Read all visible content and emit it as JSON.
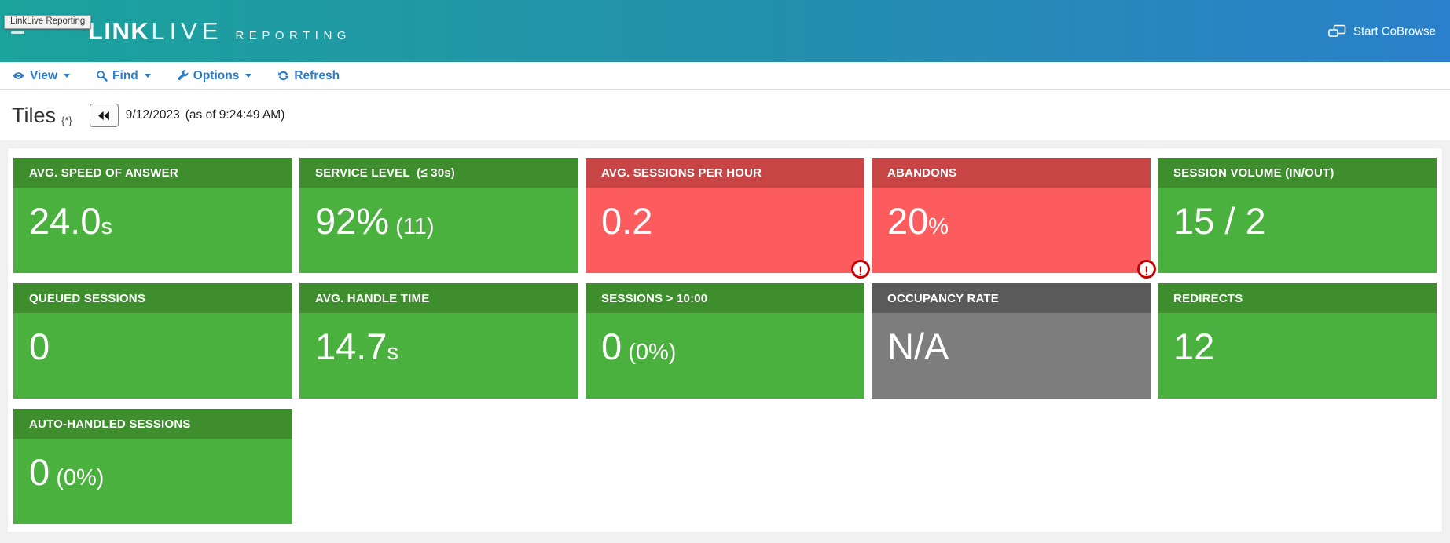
{
  "tooltip": {
    "text": "LinkLive Reporting"
  },
  "header": {
    "logo": {
      "link": "LINK",
      "live": "LIVE",
      "sub": "REPORTING"
    },
    "cobrowse_label": "Start CoBrowse"
  },
  "toolbar": {
    "view_label": "View",
    "find_label": "Find",
    "options_label": "Options",
    "refresh_label": "Refresh"
  },
  "titlebar": {
    "title": "Tiles",
    "marker": "{*}",
    "date": "9/12/2023",
    "as_of": "(as of 9:24:49 AM)"
  },
  "warning_glyph": "!",
  "colors": {
    "header_gradient_left": "#1ba39d",
    "header_gradient_right": "#2a80ca",
    "green_header": "#3e8e2e",
    "green_body": "#4ab13e",
    "red_header": "#c74645",
    "red_body": "#fc5c5e",
    "gray_header": "#5a5a5a",
    "gray_body": "#7d7d7d",
    "toolbar_link_blue": "#2b7ccc",
    "warning_red": "#c40000",
    "page_background": "#f1f1f1"
  },
  "tiles": [
    {
      "label": "AVG. SPEED OF ANSWER",
      "value": "24.0",
      "sub": "s",
      "status": "green",
      "warning": false
    },
    {
      "label": "SERVICE LEVEL  (≤ 30s)",
      "value": "92%",
      "sub": " (11)",
      "status": "green",
      "warning": false
    },
    {
      "label": "AVG. SESSIONS PER HOUR",
      "value": "0.2",
      "sub": "",
      "status": "red",
      "warning": true
    },
    {
      "label": "ABANDONS",
      "value": "20",
      "sub": "%",
      "status": "red",
      "warning": true
    },
    {
      "label": "SESSION VOLUME (IN/OUT)",
      "value": "15 / 2",
      "sub": "",
      "status": "green",
      "warning": false
    },
    {
      "label": "QUEUED SESSIONS",
      "value": "0",
      "sub": "",
      "status": "green",
      "warning": false
    },
    {
      "label": "AVG. HANDLE TIME",
      "value": "14.7",
      "sub": "s",
      "status": "green",
      "warning": false
    },
    {
      "label": "SESSIONS > 10:00",
      "value": "0",
      "sub": " (0%)",
      "status": "green",
      "warning": false
    },
    {
      "label": "OCCUPANCY RATE",
      "value": "N/A",
      "sub": "",
      "status": "gray",
      "warning": false
    },
    {
      "label": "REDIRECTS",
      "value": "12",
      "sub": "",
      "status": "green",
      "warning": false
    },
    {
      "label": "AUTO-HANDLED SESSIONS",
      "value": "0",
      "sub": " (0%)",
      "status": "green",
      "warning": false
    }
  ]
}
